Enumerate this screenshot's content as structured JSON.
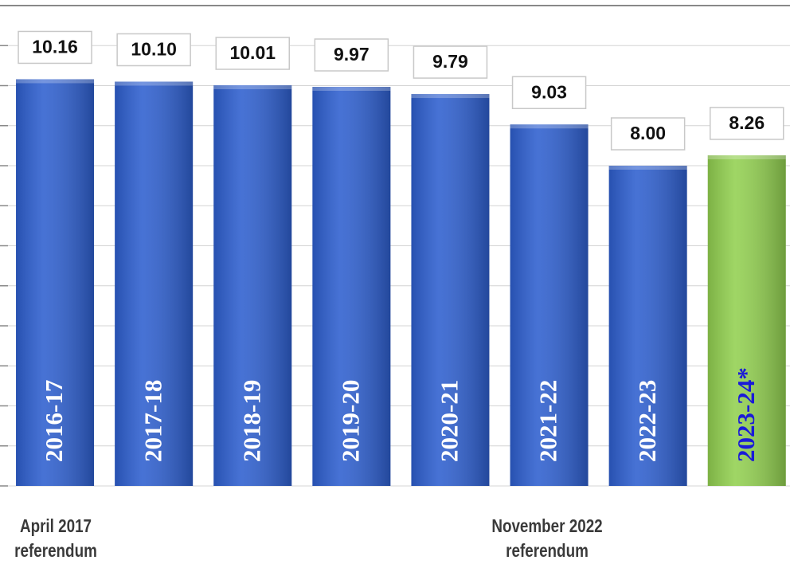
{
  "chart_data": {
    "type": "bar",
    "categories": [
      "2016-17",
      "2017-18",
      "2018-19",
      "2019-20",
      "2020-21",
      "2021-22",
      "2022-23",
      "2023-24*"
    ],
    "values": [
      10.16,
      10.1,
      10.01,
      9.97,
      9.79,
      9.03,
      8.0,
      8.26
    ],
    "value_labels": [
      "10.16",
      "10.10",
      "10.01",
      "9.97",
      "9.79",
      "9.03",
      "8.00",
      "8.26"
    ],
    "colors": [
      "#2e5fcf",
      "#2e5fcf",
      "#2e5fcf",
      "#2e5fcf",
      "#2e5fcf",
      "#2e5fcf",
      "#2e5fcf",
      "#92d050"
    ],
    "category_label_colors": [
      "#ffffff",
      "#ffffff",
      "#ffffff",
      "#ffffff",
      "#ffffff",
      "#ffffff",
      "#ffffff",
      "#1a1ad8"
    ],
    "ylim": [
      0,
      12
    ],
    "yticks": [
      0,
      1,
      2,
      3,
      4,
      5,
      6,
      7,
      8,
      9,
      10,
      11,
      12
    ],
    "grid": true,
    "annotations": [
      [
        "April 2017",
        "referendum"
      ],
      [
        "November 2022",
        "referendum"
      ]
    ]
  }
}
